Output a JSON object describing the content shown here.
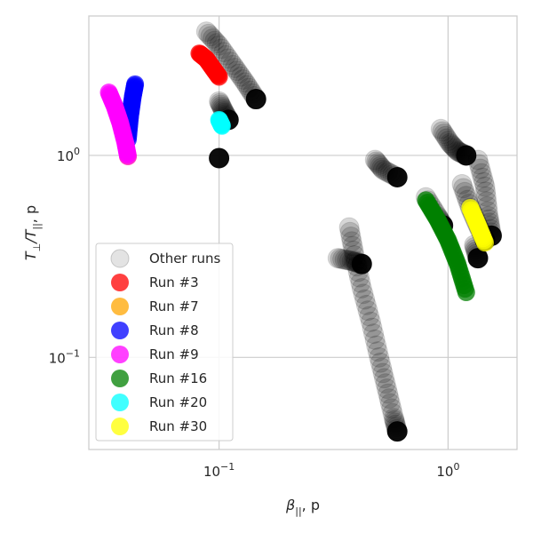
{
  "chart_data": {
    "type": "scatter",
    "title": "",
    "xlabel": "β||, p",
    "ylabel": "T⊥/T||, p",
    "xscale": "log",
    "yscale": "log",
    "xlim": [
      0.027,
      2.0
    ],
    "ylim": [
      0.035,
      4.9
    ],
    "x_ticks": [
      {
        "value": 0.1,
        "base": "10",
        "exp": "−1"
      },
      {
        "value": 1.0,
        "base": "10",
        "exp": "0"
      }
    ],
    "y_ticks": [
      {
        "value": 0.1,
        "base": "10",
        "exp": "−1"
      },
      {
        "value": 1.0,
        "base": "10",
        "exp": "0"
      }
    ],
    "grid": true,
    "legend_position": "lower-left",
    "other_runs": {
      "name": "Other runs",
      "color": "#000000",
      "tracks": [
        {
          "x": [
            0.088,
            0.1,
            0.115,
            0.13,
            0.145
          ],
          "y": [
            4.1,
            3.5,
            2.8,
            2.3,
            1.9
          ]
        },
        {
          "x": [
            0.1,
            0.105,
            0.11
          ],
          "y": [
            1.85,
            1.65,
            1.5
          ]
        },
        {
          "x": [
            0.1
          ],
          "y": [
            0.97
          ]
        },
        {
          "x": [
            0.33,
            0.38,
            0.42
          ],
          "y": [
            0.31,
            0.3,
            0.29
          ]
        },
        {
          "x": [
            0.37,
            0.39,
            0.42,
            0.46,
            0.5,
            0.54,
            0.58,
            0.6
          ],
          "y": [
            0.44,
            0.32,
            0.22,
            0.15,
            0.1,
            0.07,
            0.05,
            0.043
          ]
        },
        {
          "x": [
            0.48,
            0.52,
            0.6
          ],
          "y": [
            0.95,
            0.85,
            0.78
          ]
        },
        {
          "x": [
            0.93,
            1.02,
            1.1,
            1.2
          ],
          "y": [
            1.35,
            1.15,
            1.05,
            1.0
          ]
        },
        {
          "x": [
            0.8,
            0.9,
            0.95
          ],
          "y": [
            0.62,
            0.5,
            0.45
          ]
        },
        {
          "x": [
            1.15,
            1.25,
            1.35,
            1.45
          ],
          "y": [
            0.72,
            0.55,
            0.45,
            0.38
          ]
        },
        {
          "x": [
            1.35,
            1.45,
            1.5,
            1.55
          ],
          "y": [
            0.95,
            0.7,
            0.5,
            0.4
          ]
        },
        {
          "x": [
            1.3,
            1.35
          ],
          "y": [
            0.36,
            0.31
          ]
        }
      ]
    },
    "series": [
      {
        "name": "Run #3",
        "color": "#ff0000",
        "x": [
          0.082,
          0.088,
          0.094,
          0.1
        ],
        "y": [
          3.2,
          3.0,
          2.7,
          2.45
        ]
      },
      {
        "name": "Run #7",
        "color": "#ffa500",
        "x": [
          0.04
        ],
        "y": [
          0.99
        ]
      },
      {
        "name": "Run #8",
        "color": "#0000ff",
        "x": [
          0.04,
          0.041,
          0.042,
          0.043
        ],
        "y": [
          1.2,
          1.6,
          1.95,
          2.25
        ]
      },
      {
        "name": "Run #9",
        "color": "#ff00ff",
        "x": [
          0.033,
          0.035,
          0.037,
          0.039,
          0.04
        ],
        "y": [
          2.05,
          1.75,
          1.45,
          1.15,
          0.99
        ]
      },
      {
        "name": "Run #16",
        "color": "#008000",
        "x": [
          0.8,
          0.9,
          1.0,
          1.1,
          1.2
        ],
        "y": [
          0.6,
          0.48,
          0.38,
          0.29,
          0.21
        ]
      },
      {
        "name": "Run #20",
        "color": "#00ffff",
        "x": [
          0.1,
          0.103
        ],
        "y": [
          1.5,
          1.4
        ]
      },
      {
        "name": "Run #30",
        "color": "#ffff00",
        "x": [
          1.25,
          1.35,
          1.45
        ],
        "y": [
          0.55,
          0.45,
          0.37
        ]
      }
    ]
  }
}
